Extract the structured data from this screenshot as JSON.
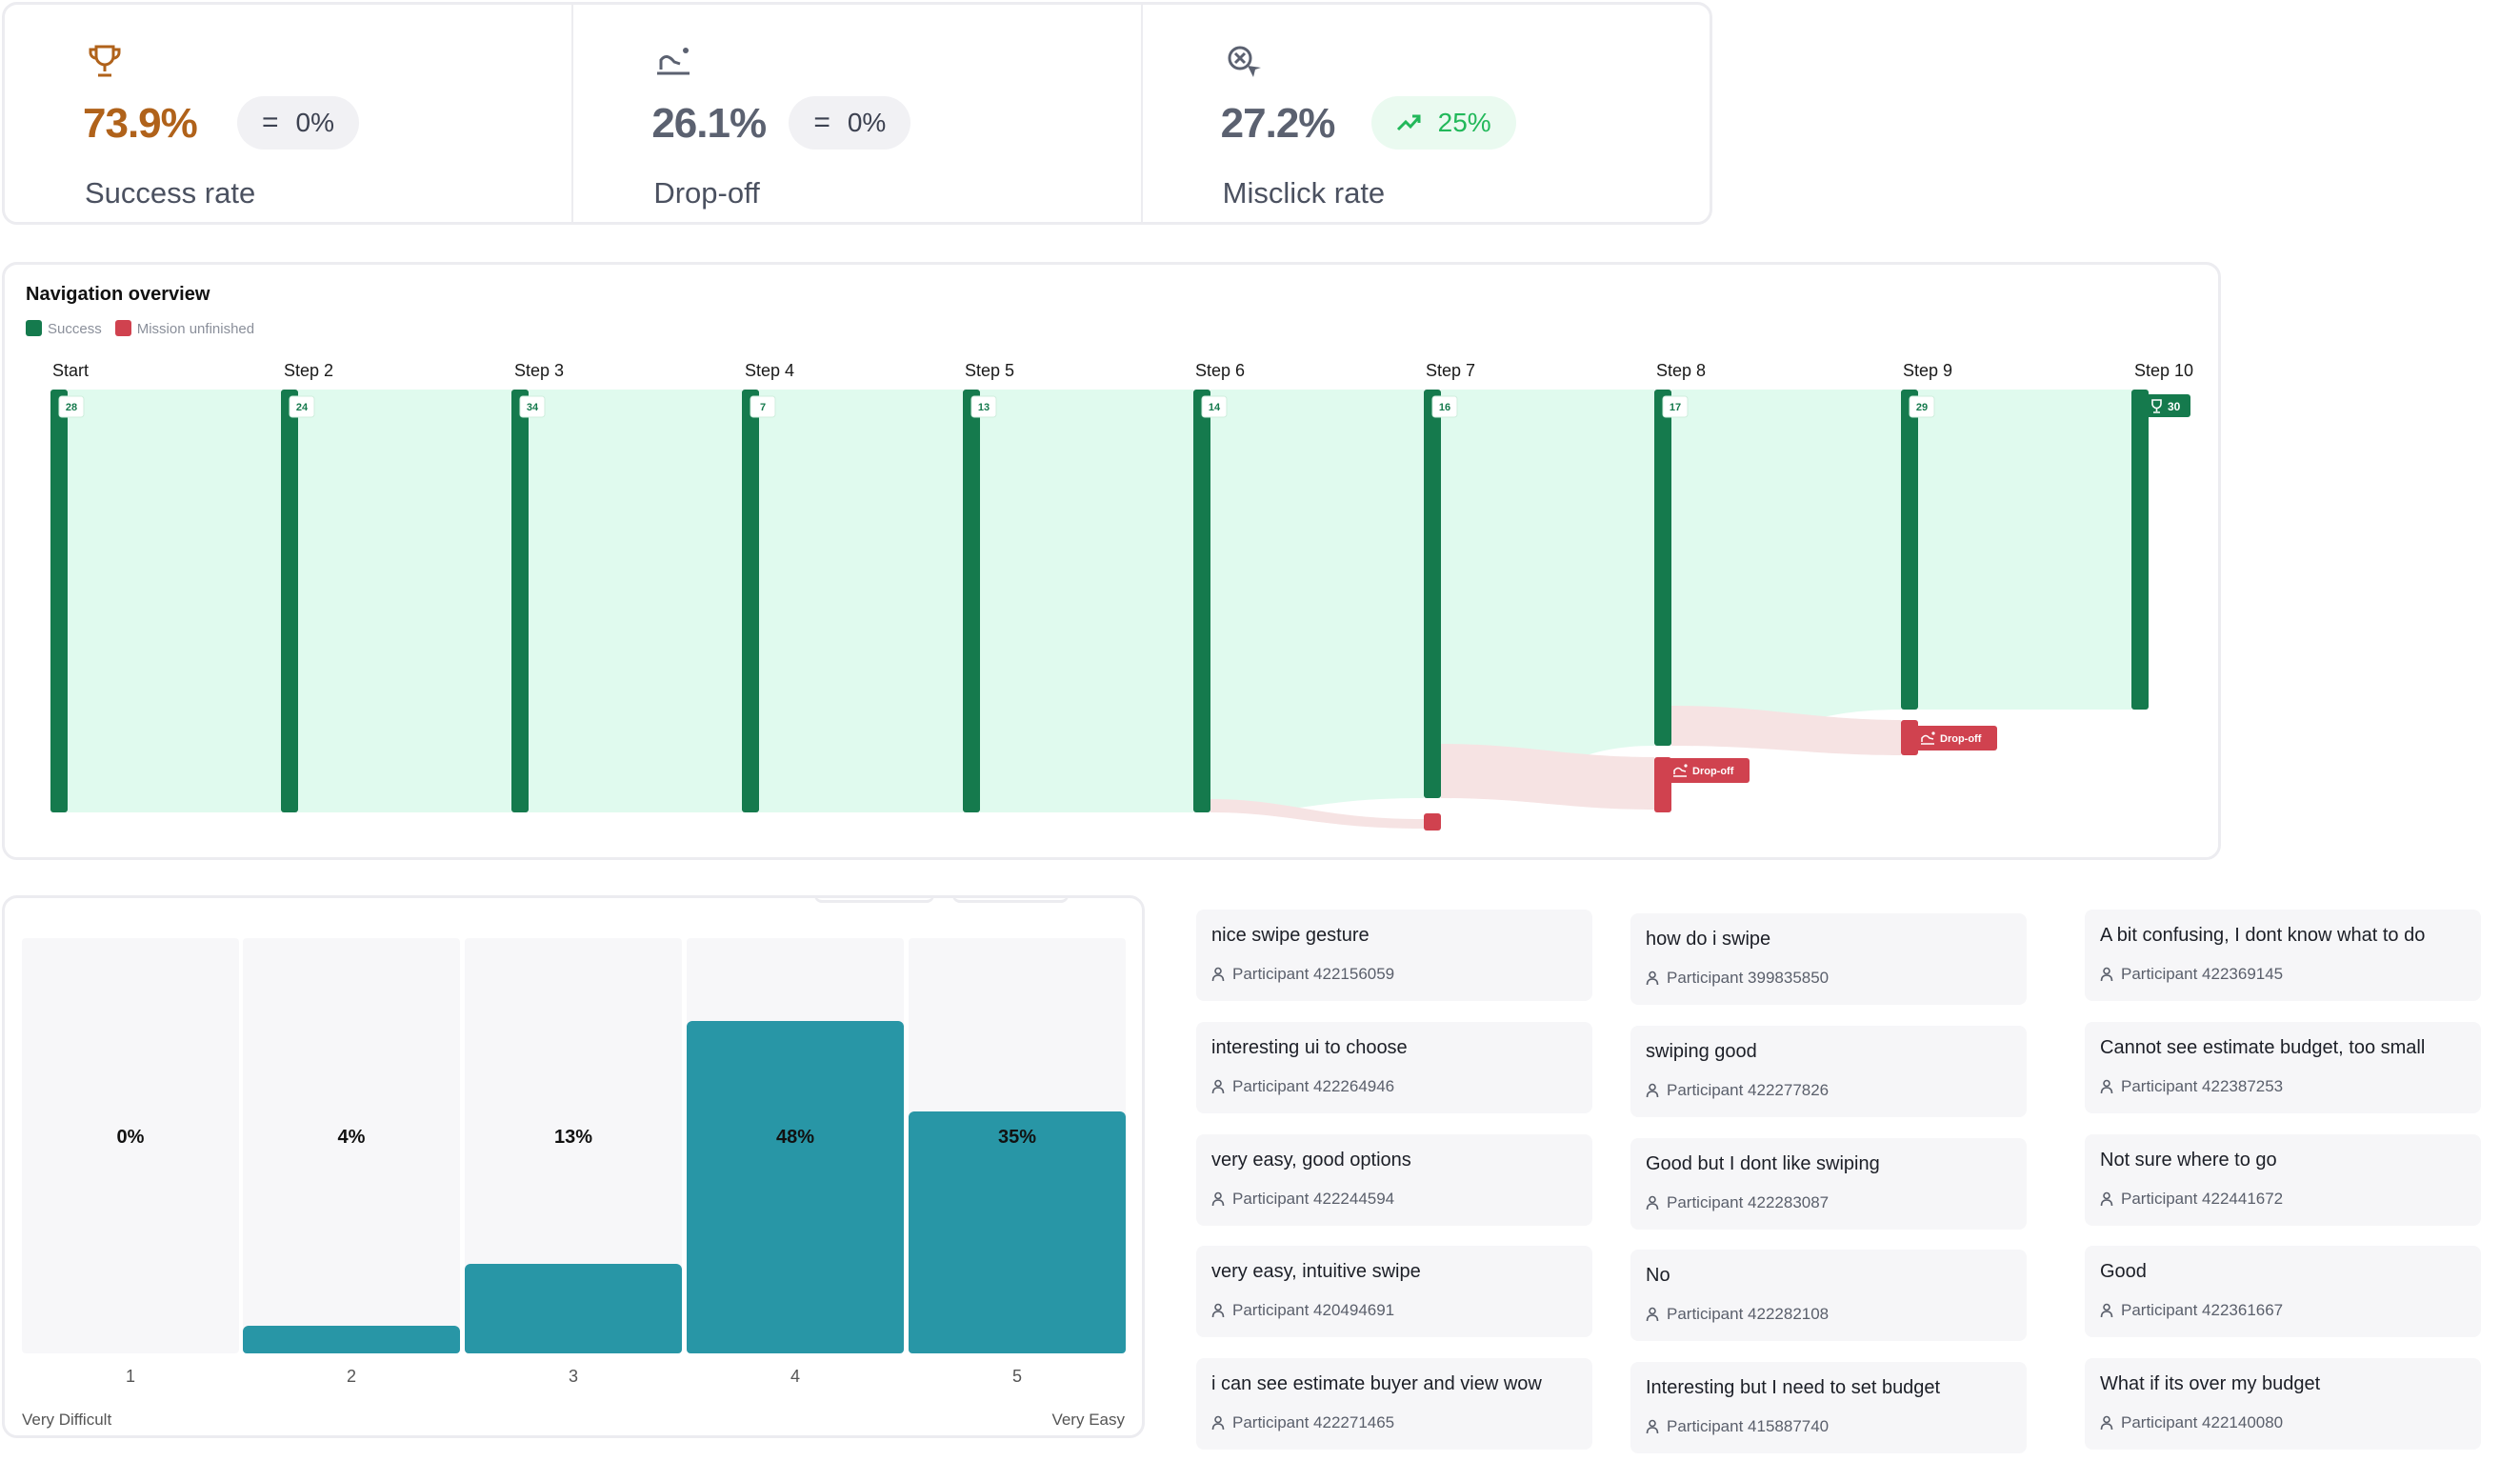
{
  "metrics": [
    {
      "value": "73.9%",
      "change": "0%",
      "change_dir": "flat",
      "label": "Success rate",
      "icon": "trophy-icon",
      "color": "#b0621a"
    },
    {
      "value": "26.1%",
      "change": "0%",
      "change_dir": "flat",
      "label": "Drop-off",
      "icon": "drop-off-icon",
      "color": "#5b6170"
    },
    {
      "value": "27.2%",
      "change": "25%",
      "change_dir": "up",
      "label": "Misclick rate",
      "icon": "misclick-icon",
      "color": "#5b6170"
    }
  ],
  "navigation": {
    "title": "Navigation overview",
    "legend": [
      {
        "label": "Success",
        "color": "#157a4d"
      },
      {
        "label": "Mission unfinished",
        "color": "#d0424f"
      }
    ],
    "steps": [
      {
        "label": "Start",
        "count": "28"
      },
      {
        "label": "Step 2",
        "count": "24"
      },
      {
        "label": "Step 3",
        "count": "34"
      },
      {
        "label": "Step 4",
        "count": "7"
      },
      {
        "label": "Step 5",
        "count": "13"
      },
      {
        "label": "Step 6",
        "count": "14"
      },
      {
        "label": "Step 7",
        "count": "16"
      },
      {
        "label": "Step 8",
        "count": "17"
      },
      {
        "label": "Step 9",
        "count": "29"
      },
      {
        "label": "Step 10",
        "count": "30"
      }
    ],
    "drop_off_label": "Drop-off",
    "colors": {
      "success": "#157a4d",
      "flow": "#e0faee",
      "drop": "#d0424f",
      "drop_flow": "#f6e3e3"
    }
  },
  "rating": {
    "bars": [
      {
        "x": "1",
        "pct": "0%",
        "value": 0
      },
      {
        "x": "2",
        "pct": "4%",
        "value": 4
      },
      {
        "x": "3",
        "pct": "13%",
        "value": 13
      },
      {
        "x": "4",
        "pct": "48%",
        "value": 48
      },
      {
        "x": "5",
        "pct": "35%",
        "value": 35
      }
    ],
    "low_label": "Very Difficult",
    "high_label": "Very Easy",
    "bar_color": "#2896a6"
  },
  "comments": [
    [
      {
        "text": "nice swipe gesture",
        "participant": "Participant 422156059"
      },
      {
        "text": "interesting ui to choose",
        "participant": "Participant 422264946"
      },
      {
        "text": "very easy, good options",
        "participant": "Participant 422244594"
      },
      {
        "text": "very easy, intuitive swipe",
        "participant": "Participant 420494691"
      },
      {
        "text": "i can see estimate buyer and view wow",
        "participant": "Participant 422271465"
      }
    ],
    [
      {
        "text": "how do i swipe",
        "participant": "Participant 399835850"
      },
      {
        "text": "swiping good",
        "participant": "Participant 422277826"
      },
      {
        "text": "Good but I dont like swiping",
        "participant": "Participant 422283087"
      },
      {
        "text": "No",
        "participant": "Participant 422282108"
      },
      {
        "text": "Interesting but I need to set budget",
        "participant": "Participant 415887740"
      }
    ],
    [
      {
        "text": "A bit confusing, I dont know what to do",
        "participant": "Participant 422369145"
      },
      {
        "text": "Cannot see estimate budget, too small",
        "participant": "Participant 422387253"
      },
      {
        "text": "Not sure where to go",
        "participant": "Participant 422441672"
      },
      {
        "text": "Good",
        "participant": "Participant 422361667"
      },
      {
        "text": "What if its over my budget",
        "participant": "Participant 422140080"
      }
    ]
  ]
}
